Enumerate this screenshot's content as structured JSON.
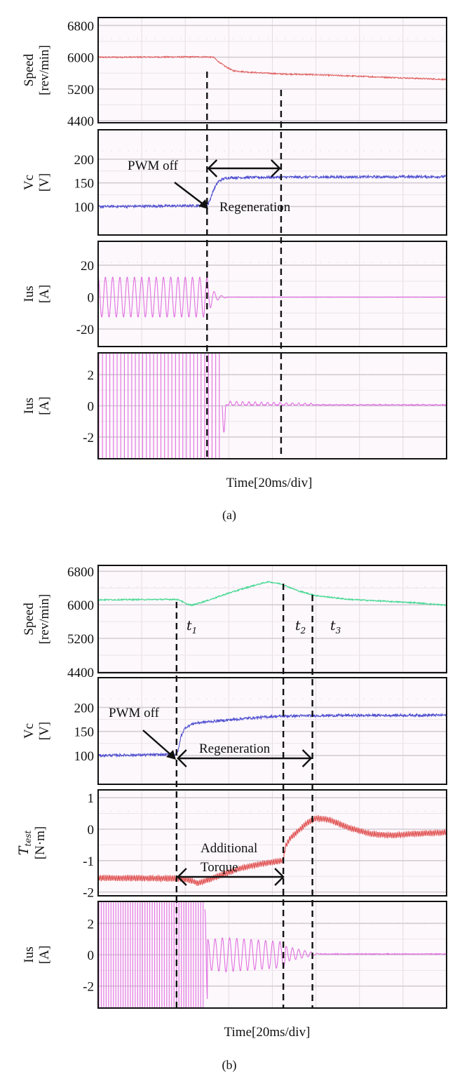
{
  "figure": {
    "caption_a": "(a)",
    "caption_b": "(b)",
    "xlabel": "Time[20ms/div]"
  },
  "chart_data": [
    {
      "type": "line",
      "id": "a-speed",
      "subfigure": "(a)",
      "ylabel_line1": "Speed",
      "ylabel_line2": "[rev/min]",
      "yticks": [
        "6800",
        "6000",
        "5200",
        "4400"
      ],
      "ytick_values": [
        6800,
        6000,
        5200,
        4400
      ],
      "ylim": [
        4350,
        7000
      ],
      "xlim": [
        0,
        160
      ],
      "xunit": "ms",
      "grid": true,
      "color": "#e06060",
      "series": [
        {
          "name": "Speed",
          "x": [
            0,
            50,
            53,
            55,
            58,
            62,
            70,
            84,
            100,
            120,
            140,
            160
          ],
          "y": [
            6000,
            6010,
            6000,
            5900,
            5780,
            5660,
            5620,
            5580,
            5560,
            5520,
            5480,
            5440
          ]
        }
      ],
      "markers_x": [
        50,
        84
      ]
    },
    {
      "type": "line",
      "id": "a-vc",
      "subfigure": "(a)",
      "ylabel_line1": "Vc",
      "ylabel_line2": "[V]",
      "yticks": [
        "200",
        "150",
        "100"
      ],
      "ytick_values": [
        200,
        150,
        100
      ],
      "ylim": [
        40,
        262
      ],
      "xlim": [
        0,
        160
      ],
      "grid": true,
      "color": "#5050d0",
      "series": [
        {
          "name": "Vc",
          "x": [
            0,
            50,
            51,
            53,
            55,
            57,
            60,
            84,
            160
          ],
          "y": [
            100,
            102,
            110,
            135,
            152,
            158,
            161,
            162,
            163
          ]
        }
      ],
      "annotations": [
        {
          "text": "PWM off",
          "type": "arrow-label"
        },
        {
          "text": "Regeneration",
          "type": "span",
          "x_from": 50,
          "x_to": 84
        }
      ],
      "markers_x": [
        50,
        84
      ]
    },
    {
      "type": "line",
      "id": "a-ius-wide",
      "subfigure": "(a)",
      "ylabel_line1": "Ius",
      "ylabel_line2": "[A]",
      "yticks": [
        "20",
        "0",
        "-20"
      ],
      "ytick_values": [
        20,
        0,
        -20
      ],
      "ylim": [
        -31,
        35
      ],
      "xlim": [
        0,
        160
      ],
      "grid": true,
      "color": "#e070e0",
      "series": [
        {
          "name": "Ius",
          "amplitude_before": 12.5,
          "cycles_before": 15,
          "x_off": 50,
          "decay_until": 59,
          "value_after": 0
        }
      ],
      "markers_x": [
        50,
        84
      ]
    },
    {
      "type": "line",
      "id": "a-ius-zoom",
      "subfigure": "(a)",
      "ylabel_line1": "Ius",
      "ylabel_line2": "[A]",
      "yticks": [
        "2",
        "0",
        "-2"
      ],
      "ytick_values": [
        2,
        0,
        -2
      ],
      "ylim": [
        -3.4,
        3.4
      ],
      "xlim": [
        0,
        160
      ],
      "grid": true,
      "color": "#e070e0",
      "series": [
        {
          "name": "Ius",
          "saturated_until": 57,
          "spike_min": -1.7,
          "ripple_amplitude": 0.25,
          "ripple_decay_until": 100,
          "value_after": 0.05
        }
      ],
      "markers_x": [
        50,
        84
      ]
    },
    {
      "type": "line",
      "id": "b-speed",
      "subfigure": "(b)",
      "ylabel_line1": "Speed",
      "ylabel_line2": "[rev/min]",
      "yticks": [
        "6800",
        "6000",
        "5200",
        "4400"
      ],
      "ytick_values": [
        6800,
        6000,
        5200,
        4400
      ],
      "ylim": [
        4380,
        6940
      ],
      "xlim": [
        0,
        160
      ],
      "grid": true,
      "color": "#40d890",
      "series": [
        {
          "name": "Speed",
          "x": [
            0,
            36,
            38,
            40,
            43,
            50,
            60,
            70,
            78,
            84,
            92,
            100,
            115,
            130,
            145,
            160
          ],
          "y": [
            6120,
            6130,
            6100,
            6030,
            5990,
            6100,
            6280,
            6440,
            6550,
            6500,
            6330,
            6220,
            6130,
            6090,
            6050,
            5990
          ]
        }
      ],
      "markers_x": [
        36,
        86,
        100
      ],
      "time_labels": [
        {
          "base": "t",
          "sub": "1"
        },
        {
          "base": "t",
          "sub": "2"
        },
        {
          "base": "t",
          "sub": "3"
        }
      ]
    },
    {
      "type": "line",
      "id": "b-vc",
      "subfigure": "(b)",
      "ylabel_line1": "Vc",
      "ylabel_line2": "[V]",
      "yticks": [
        "200",
        "150",
        "100"
      ],
      "ytick_values": [
        200,
        150,
        100
      ],
      "ylim": [
        40,
        262
      ],
      "xlim": [
        0,
        160
      ],
      "grid": true,
      "color": "#5050d0",
      "series": [
        {
          "name": "Vc",
          "x": [
            0,
            36,
            37,
            38,
            40,
            44,
            50,
            60,
            70,
            80,
            86,
            100,
            160
          ],
          "y": [
            100,
            102,
            115,
            140,
            158,
            167,
            170,
            174,
            178,
            181,
            182,
            183,
            184
          ]
        }
      ],
      "annotations": [
        {
          "text": "PWM off",
          "type": "arrow-label"
        },
        {
          "text": "Regeneration",
          "type": "span",
          "x_from": 36,
          "x_to": 100
        }
      ],
      "markers_x": [
        36,
        86,
        100
      ]
    },
    {
      "type": "line",
      "id": "b-torque",
      "subfigure": "(b)",
      "ylabel_line1": "T_test",
      "ylabel_base": "T",
      "ylabel_sub": "test",
      "ylabel_line2": "[N·m]",
      "yticks": [
        "1",
        "0",
        "-1",
        "-2"
      ],
      "ytick_values": [
        1,
        0,
        -1,
        -2
      ],
      "ylim": [
        -2.12,
        1.25
      ],
      "xlim": [
        0,
        160
      ],
      "grid": true,
      "color": "#e05050",
      "series": [
        {
          "name": "T_test",
          "x": [
            0,
            36,
            42,
            46,
            55,
            65,
            75,
            85,
            86,
            88,
            92,
            96,
            100,
            106,
            115,
            125,
            135,
            145,
            160
          ],
          "y": [
            -1.55,
            -1.57,
            -1.62,
            -1.72,
            -1.5,
            -1.25,
            -1.1,
            -1.0,
            -0.55,
            -0.3,
            -0.05,
            0.2,
            0.35,
            0.3,
            0.05,
            -0.15,
            -0.2,
            -0.15,
            -0.1
          ]
        }
      ],
      "annotations": [
        {
          "text": "Additional",
          "type": "label"
        },
        {
          "text": "Torque",
          "type": "span",
          "x_from": 36,
          "x_to": 86
        }
      ],
      "markers_x": [
        36,
        86,
        100
      ]
    },
    {
      "type": "line",
      "id": "b-ius",
      "subfigure": "(b)",
      "ylabel_line1": "Ius",
      "ylabel_line2": "[A]",
      "yticks": [
        "2",
        "0",
        "-2"
      ],
      "ytick_values": [
        2,
        0,
        -2
      ],
      "ylim": [
        -3.4,
        3.4
      ],
      "xlim": [
        0,
        160
      ],
      "grid": true,
      "color": "#e070e0",
      "series": [
        {
          "name": "Ius",
          "saturated_until": 49,
          "spike_max": 2.9,
          "ripple_amplitude_peak": 1.1,
          "ripple_until": 86,
          "decay_until": 102,
          "value_after": 0.05
        }
      ],
      "markers_x": [
        36,
        86,
        100
      ]
    }
  ]
}
